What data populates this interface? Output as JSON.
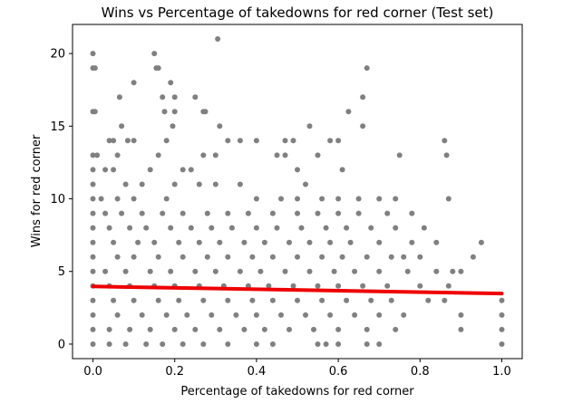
{
  "chart_data": {
    "type": "scatter",
    "title": "Wins vs Percentage of takedowns for red corner (Test set)",
    "xlabel": "Percentage of takedowns for red corner",
    "ylabel": "Wins for red corner",
    "xlim": [
      -0.05,
      1.05
    ],
    "ylim": [
      -1,
      22
    ],
    "xticks": [
      0.0,
      0.2,
      0.4,
      0.6,
      0.8,
      1.0
    ],
    "xtick_labels": [
      "0.0",
      "0.2",
      "0.4",
      "0.6",
      "0.8",
      "1.0"
    ],
    "yticks": [
      0,
      5,
      10,
      15,
      20
    ],
    "ytick_labels": [
      "0",
      "5",
      "10",
      "15",
      "20"
    ],
    "grid": false,
    "colors": {
      "points": "#808080",
      "trend": "#ee0000"
    },
    "trend_line": {
      "x": [
        0.0,
        1.0
      ],
      "y": [
        3.97,
        3.48
      ]
    },
    "points": [
      [
        0.0,
        20
      ],
      [
        0.0,
        19
      ],
      [
        0.005,
        19
      ],
      [
        0.0,
        16
      ],
      [
        0.005,
        16
      ],
      [
        0.0,
        13
      ],
      [
        0.01,
        13
      ],
      [
        0.0,
        12
      ],
      [
        0.0,
        11
      ],
      [
        0.04,
        14
      ],
      [
        0.05,
        14
      ],
      [
        0.06,
        13
      ],
      [
        0.07,
        15
      ],
      [
        0.065,
        17
      ],
      [
        0.08,
        11
      ],
      [
        0.085,
        14
      ],
      [
        0.1,
        14
      ],
      [
        0.1,
        18
      ],
      [
        0.15,
        20
      ],
      [
        0.16,
        19
      ],
      [
        0.155,
        19
      ],
      [
        0.17,
        17
      ],
      [
        0.175,
        16
      ],
      [
        0.18,
        14
      ],
      [
        0.19,
        18
      ],
      [
        0.2,
        17
      ],
      [
        0.2,
        16
      ],
      [
        0.195,
        15
      ],
      [
        0.25,
        17
      ],
      [
        0.27,
        16
      ],
      [
        0.275,
        16
      ],
      [
        0.305,
        21
      ],
      [
        0.31,
        15
      ],
      [
        0.33,
        14
      ],
      [
        0.36,
        14
      ],
      [
        0.4,
        14
      ],
      [
        0.3,
        13
      ],
      [
        0.27,
        13
      ],
      [
        0.24,
        12
      ],
      [
        0.22,
        12
      ],
      [
        0.16,
        13
      ],
      [
        0.14,
        12
      ],
      [
        0.12,
        11
      ],
      [
        0.03,
        12
      ],
      [
        0.05,
        12
      ],
      [
        0.47,
        14
      ],
      [
        0.49,
        14
      ],
      [
        0.45,
        13
      ],
      [
        0.47,
        13
      ],
      [
        0.5,
        12
      ],
      [
        0.53,
        15
      ],
      [
        0.58,
        14
      ],
      [
        0.6,
        14
      ],
      [
        0.61,
        12
      ],
      [
        0.625,
        16
      ],
      [
        0.66,
        17
      ],
      [
        0.67,
        19
      ],
      [
        0.66,
        15
      ],
      [
        0.55,
        13
      ],
      [
        0.52,
        11
      ],
      [
        0.75,
        13
      ],
      [
        0.86,
        14
      ],
      [
        0.865,
        13
      ],
      [
        0.87,
        10
      ],
      [
        0.78,
        9
      ],
      [
        0.74,
        10
      ],
      [
        0.7,
        10
      ],
      [
        0.65,
        10
      ],
      [
        0.6,
        10
      ],
      [
        0.56,
        10
      ],
      [
        0.5,
        10
      ],
      [
        0.46,
        10
      ],
      [
        0.4,
        10
      ],
      [
        0.36,
        11
      ],
      [
        0.3,
        11
      ],
      [
        0.26,
        11
      ],
      [
        0.2,
        11
      ],
      [
        0.18,
        10
      ],
      [
        0.1,
        10
      ],
      [
        0.06,
        10
      ],
      [
        0.02,
        10
      ],
      [
        0.0,
        10
      ],
      [
        0.0,
        9
      ],
      [
        0.03,
        9
      ],
      [
        0.07,
        9
      ],
      [
        0.12,
        9
      ],
      [
        0.17,
        9
      ],
      [
        0.22,
        9
      ],
      [
        0.28,
        9
      ],
      [
        0.33,
        9
      ],
      [
        0.38,
        9
      ],
      [
        0.44,
        9
      ],
      [
        0.5,
        9
      ],
      [
        0.55,
        9
      ],
      [
        0.6,
        9
      ],
      [
        0.65,
        9
      ],
      [
        0.72,
        9
      ],
      [
        0.0,
        8
      ],
      [
        0.04,
        8
      ],
      [
        0.09,
        8
      ],
      [
        0.13,
        8
      ],
      [
        0.19,
        8
      ],
      [
        0.24,
        8
      ],
      [
        0.29,
        8
      ],
      [
        0.34,
        8
      ],
      [
        0.4,
        8
      ],
      [
        0.45,
        8
      ],
      [
        0.51,
        8
      ],
      [
        0.57,
        8
      ],
      [
        0.62,
        8
      ],
      [
        0.68,
        8
      ],
      [
        0.74,
        8
      ],
      [
        0.81,
        8
      ],
      [
        0.0,
        7
      ],
      [
        0.05,
        7
      ],
      [
        0.11,
        7
      ],
      [
        0.15,
        7
      ],
      [
        0.21,
        7
      ],
      [
        0.26,
        7
      ],
      [
        0.31,
        7
      ],
      [
        0.37,
        7
      ],
      [
        0.42,
        7
      ],
      [
        0.48,
        7
      ],
      [
        0.53,
        7
      ],
      [
        0.58,
        7
      ],
      [
        0.63,
        7
      ],
      [
        0.7,
        7
      ],
      [
        0.78,
        7
      ],
      [
        0.84,
        7
      ],
      [
        0.95,
        7
      ],
      [
        0.0,
        6
      ],
      [
        0.06,
        6
      ],
      [
        0.1,
        6
      ],
      [
        0.16,
        6
      ],
      [
        0.22,
        6
      ],
      [
        0.28,
        6
      ],
      [
        0.33,
        6
      ],
      [
        0.39,
        6
      ],
      [
        0.44,
        6
      ],
      [
        0.5,
        6
      ],
      [
        0.56,
        6
      ],
      [
        0.61,
        6
      ],
      [
        0.67,
        6
      ],
      [
        0.73,
        6
      ],
      [
        0.76,
        6
      ],
      [
        0.8,
        6
      ],
      [
        0.93,
        6
      ],
      [
        0.0,
        5
      ],
      [
        0.03,
        5
      ],
      [
        0.08,
        5
      ],
      [
        0.14,
        5
      ],
      [
        0.19,
        5
      ],
      [
        0.25,
        5
      ],
      [
        0.3,
        5
      ],
      [
        0.36,
        5
      ],
      [
        0.41,
        5
      ],
      [
        0.47,
        5
      ],
      [
        0.53,
        5
      ],
      [
        0.59,
        5
      ],
      [
        0.64,
        5
      ],
      [
        0.7,
        5
      ],
      [
        0.77,
        5
      ],
      [
        0.84,
        5
      ],
      [
        0.88,
        5
      ],
      [
        0.9,
        5
      ],
      [
        0.0,
        4
      ],
      [
        0.04,
        4
      ],
      [
        0.09,
        4
      ],
      [
        0.15,
        4
      ],
      [
        0.2,
        4
      ],
      [
        0.26,
        4
      ],
      [
        0.32,
        4
      ],
      [
        0.38,
        4
      ],
      [
        0.43,
        4
      ],
      [
        0.49,
        4
      ],
      [
        0.55,
        4
      ],
      [
        0.6,
        4
      ],
      [
        0.66,
        4
      ],
      [
        0.72,
        4
      ],
      [
        0.8,
        4
      ],
      [
        0.87,
        4
      ],
      [
        0.0,
        3
      ],
      [
        0.05,
        3
      ],
      [
        0.1,
        3
      ],
      [
        0.16,
        3
      ],
      [
        0.21,
        3
      ],
      [
        0.27,
        3
      ],
      [
        0.33,
        3
      ],
      [
        0.39,
        3
      ],
      [
        0.44,
        3
      ],
      [
        0.5,
        3
      ],
      [
        0.56,
        3
      ],
      [
        0.62,
        3
      ],
      [
        0.68,
        3
      ],
      [
        0.73,
        3
      ],
      [
        0.82,
        3
      ],
      [
        0.86,
        3
      ],
      [
        1.0,
        3
      ],
      [
        0.0,
        2
      ],
      [
        0.06,
        2
      ],
      [
        0.12,
        2
      ],
      [
        0.18,
        2
      ],
      [
        0.23,
        2
      ],
      [
        0.29,
        2
      ],
      [
        0.35,
        2
      ],
      [
        0.4,
        2
      ],
      [
        0.46,
        2
      ],
      [
        0.52,
        2
      ],
      [
        0.58,
        2
      ],
      [
        0.64,
        2
      ],
      [
        0.7,
        2
      ],
      [
        0.76,
        2
      ],
      [
        0.9,
        2
      ],
      [
        1.0,
        2
      ],
      [
        0.0,
        1
      ],
      [
        0.04,
        1
      ],
      [
        0.09,
        1
      ],
      [
        0.14,
        1
      ],
      [
        0.2,
        1
      ],
      [
        0.25,
        1
      ],
      [
        0.31,
        1
      ],
      [
        0.37,
        1
      ],
      [
        0.42,
        1
      ],
      [
        0.48,
        1
      ],
      [
        0.54,
        1
      ],
      [
        0.6,
        1
      ],
      [
        0.67,
        1
      ],
      [
        0.74,
        1
      ],
      [
        0.9,
        1
      ],
      [
        1.0,
        1
      ],
      [
        0.0,
        0
      ],
      [
        0.04,
        0
      ],
      [
        0.08,
        0
      ],
      [
        0.13,
        0
      ],
      [
        0.17,
        0
      ],
      [
        0.22,
        0
      ],
      [
        0.27,
        0
      ],
      [
        0.33,
        0
      ],
      [
        0.4,
        0
      ],
      [
        0.44,
        0
      ],
      [
        0.55,
        0
      ],
      [
        0.57,
        0
      ],
      [
        0.6,
        0
      ],
      [
        0.67,
        0
      ],
      [
        0.7,
        0
      ],
      [
        1.0,
        0
      ]
    ]
  }
}
